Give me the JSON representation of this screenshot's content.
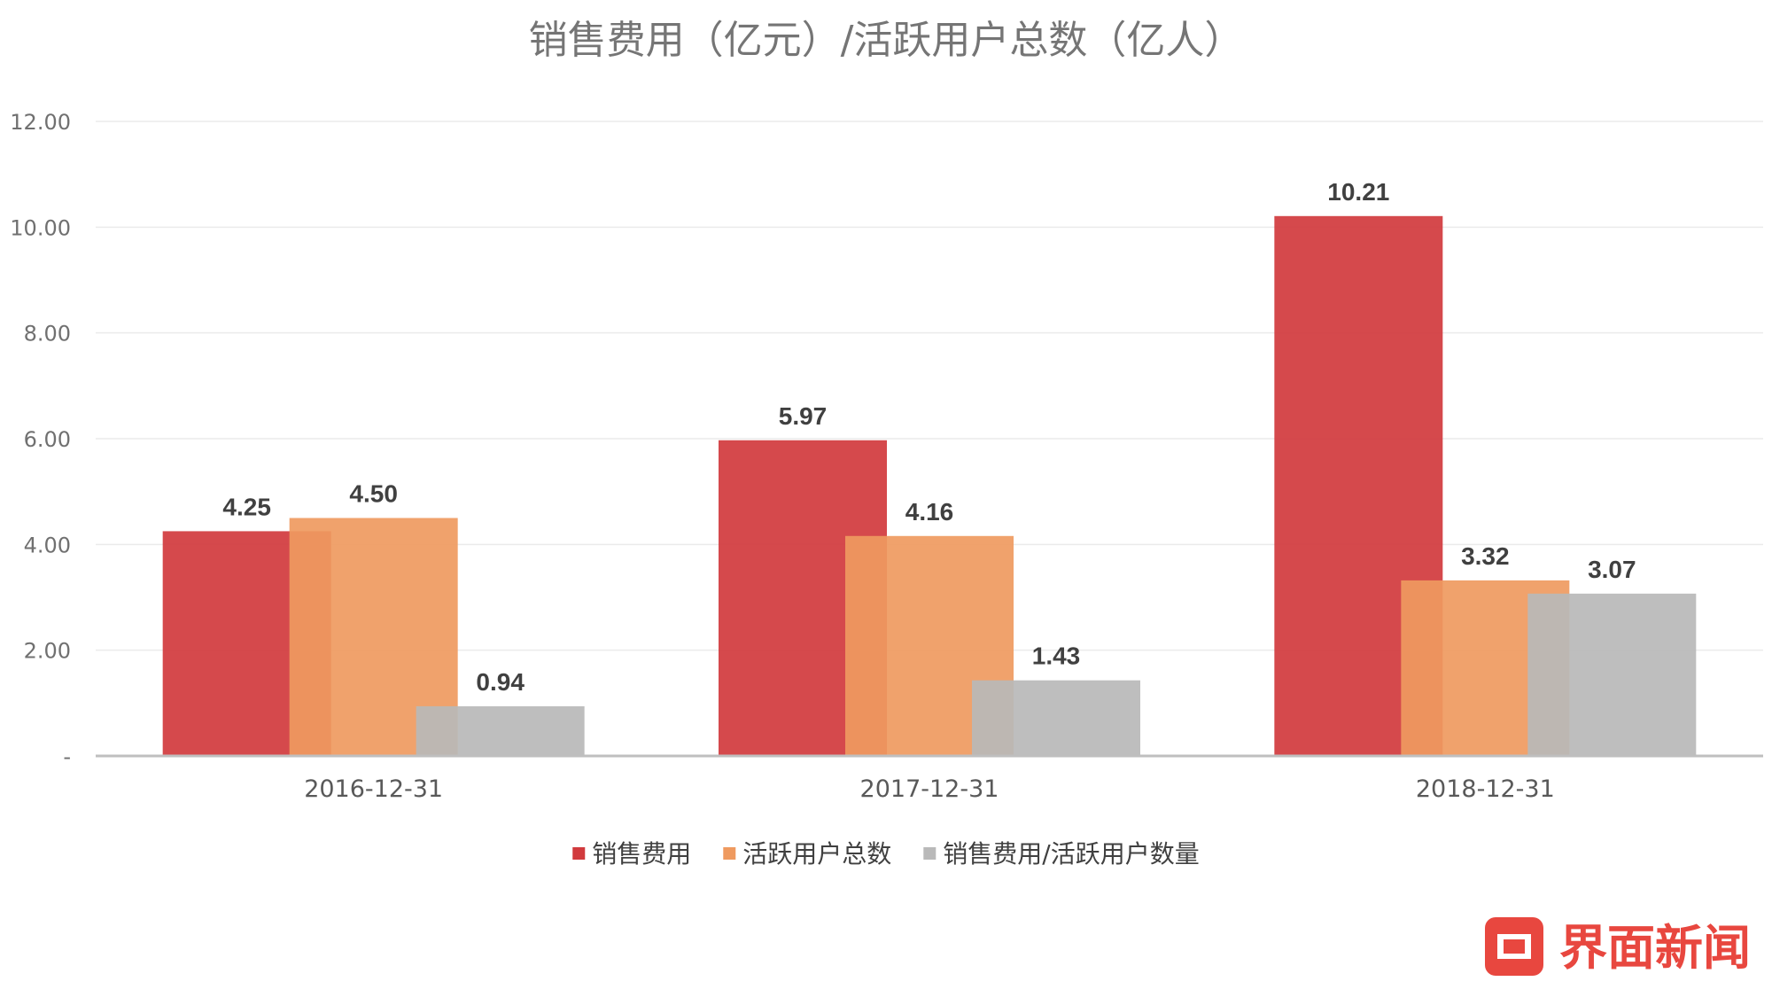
{
  "chart_data": {
    "type": "bar",
    "title": "销售费用（亿元）/活跃用户总数（亿人）",
    "categories": [
      "2016-12-31",
      "2017-12-31",
      "2018-12-31"
    ],
    "series": [
      {
        "name": "销售费用",
        "values": [
          4.25,
          5.97,
          10.21
        ],
        "labels": [
          "4.25",
          "5.97",
          "10.21"
        ],
        "color": "#d13a3d"
      },
      {
        "name": "活跃用户总数",
        "values": [
          4.5,
          4.16,
          3.32
        ],
        "labels": [
          "4.50",
          "4.16",
          "3.32"
        ],
        "color": "#ef9a5f"
      },
      {
        "name": "销售费用/活跃用户数量",
        "values": [
          0.94,
          1.43,
          3.07
        ],
        "labels": [
          "0.94",
          "1.43",
          "3.07"
        ],
        "color": "#b9b9b9"
      }
    ],
    "ylim": [
      0,
      12
    ],
    "yticks": [
      {
        "value": 0,
        "label": "-"
      },
      {
        "value": 2,
        "label": "2.00"
      },
      {
        "value": 4,
        "label": "4.00"
      },
      {
        "value": 6,
        "label": "6.00"
      },
      {
        "value": 8,
        "label": "8.00"
      },
      {
        "value": 10,
        "label": "10.00"
      },
      {
        "value": 12,
        "label": "12.00"
      }
    ],
    "grid": true,
    "legend_position": "bottom"
  },
  "watermark": {
    "text": "界面新闻",
    "color": "#e8473f"
  }
}
